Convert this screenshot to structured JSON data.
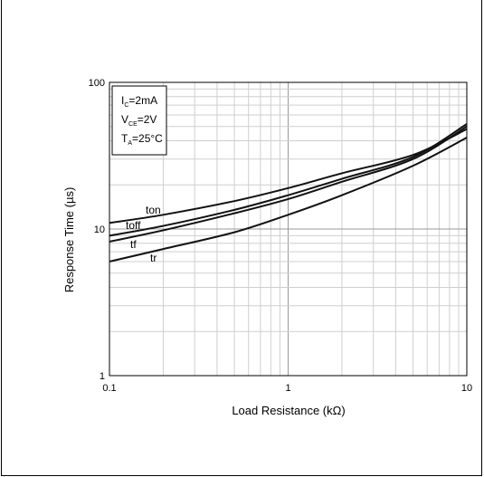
{
  "chart_data": {
    "type": "line",
    "title": "",
    "xlabel": "Load Resistance (kΩ)",
    "ylabel": "Response Time (µs)",
    "xscale": "log",
    "yscale": "log",
    "xlim": [
      0.1,
      10
    ],
    "ylim": [
      1,
      100
    ],
    "x_ticks": [
      "0.1",
      "1",
      "10"
    ],
    "y_ticks": [
      "1",
      "10",
      "100"
    ],
    "grid": true,
    "conditions": {
      "ic": {
        "main": "I",
        "sub": "C",
        "rest": "=2mA"
      },
      "vce": {
        "main": "V",
        "sub": "CE",
        "rest": "=2V"
      },
      "ta": {
        "main": "T",
        "sub": "A",
        "rest": "=25°C"
      }
    },
    "series": [
      {
        "name": "ton",
        "x": [
          0.1,
          0.2,
          0.5,
          1,
          2,
          5,
          10
        ],
        "y": [
          11,
          12.5,
          15.5,
          19,
          24,
          32,
          48
        ]
      },
      {
        "name": "toff",
        "x": [
          0.1,
          0.2,
          0.5,
          1,
          2,
          5,
          10
        ],
        "y": [
          9,
          10.5,
          13.5,
          17,
          22,
          31,
          52
        ]
      },
      {
        "name": "tf",
        "x": [
          0.1,
          0.2,
          0.5,
          1,
          2,
          5,
          10
        ],
        "y": [
          8.2,
          9.8,
          12.8,
          16,
          21,
          30,
          50
        ]
      },
      {
        "name": "tr",
        "x": [
          0.1,
          0.2,
          0.5,
          1,
          2,
          5,
          10
        ],
        "y": [
          6.0,
          7.3,
          9.5,
          12.5,
          17,
          27,
          42
        ]
      }
    ]
  }
}
